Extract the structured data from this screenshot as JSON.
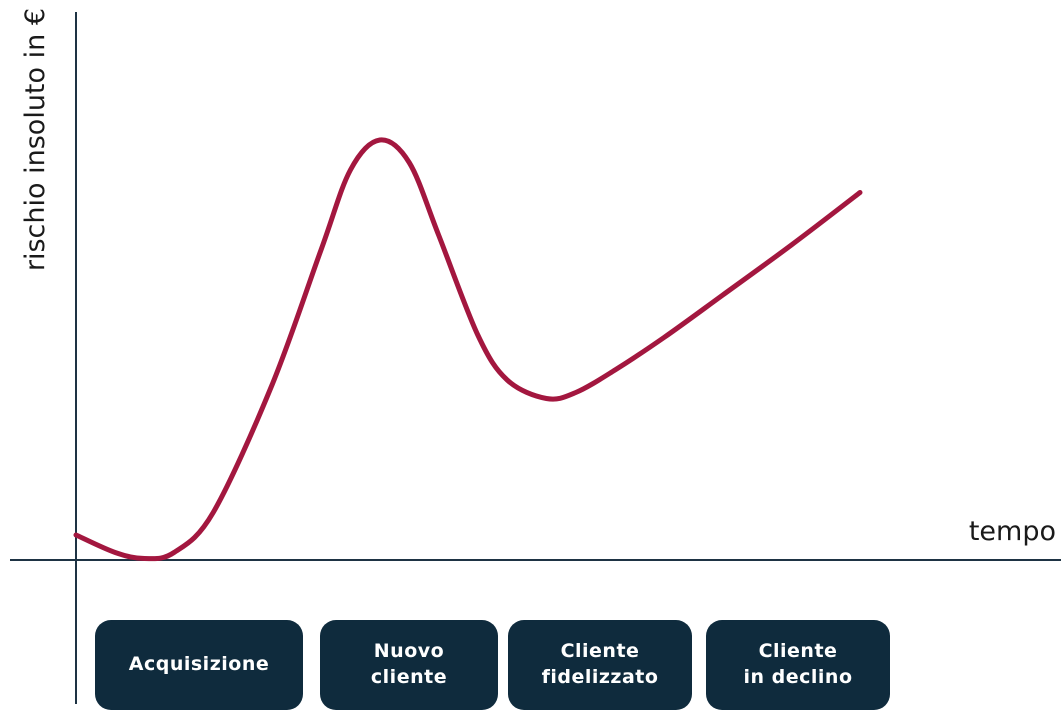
{
  "chart_data": {
    "type": "line",
    "ylabel": "rischio insoluto in €",
    "xlabel": "tempo",
    "xlim": [
      0,
      100
    ],
    "ylim": [
      0,
      100
    ],
    "series_color": "#a3173f",
    "axis_color": "#1e3344",
    "series": [
      {
        "points": [
          [
            0,
            5.0
          ],
          [
            4,
            1.5
          ],
          [
            7,
            0.3
          ],
          [
            10,
            1.5
          ],
          [
            14,
            9.5
          ],
          [
            20,
            35
          ],
          [
            25,
            62
          ],
          [
            28,
            78
          ],
          [
            31,
            84
          ],
          [
            34,
            79.5
          ],
          [
            37,
            65
          ],
          [
            41,
            45
          ],
          [
            44,
            36
          ],
          [
            48,
            32.3
          ],
          [
            51,
            33.5
          ],
          [
            55,
            38
          ],
          [
            60,
            44.5
          ],
          [
            66,
            53
          ],
          [
            73,
            63
          ],
          [
            80,
            73.5
          ]
        ]
      }
    ]
  },
  "phases": [
    {
      "label": "Acquisizione"
    },
    {
      "label": "Nuovo\ncliente"
    },
    {
      "label": "Cliente\nfidelizzato"
    },
    {
      "label": "Cliente\nin declino"
    }
  ]
}
